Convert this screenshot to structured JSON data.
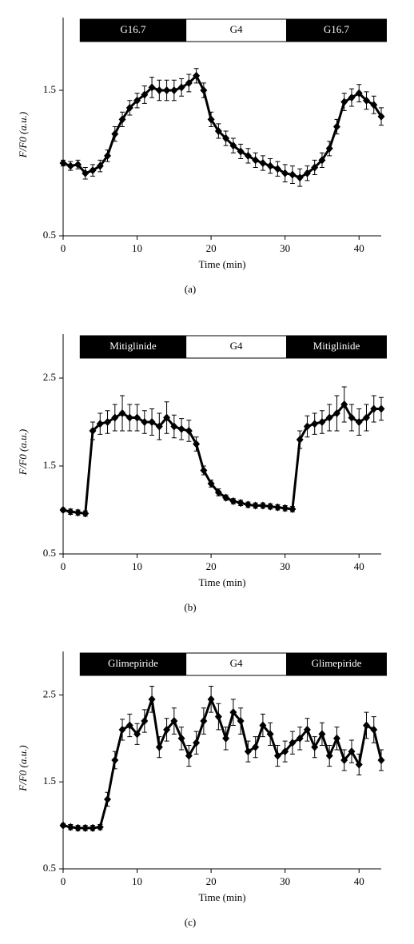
{
  "chart_data": [
    {
      "type": "line",
      "label": "(a)",
      "xlabel": "Time (min)",
      "ylabel": "F/F0 (a.u.)",
      "xlim": [
        0,
        43
      ],
      "xticks": [
        0,
        10,
        20,
        30,
        40
      ],
      "ylim": [
        0.5,
        2.0
      ],
      "yticks": [
        0.5,
        1.5
      ],
      "color": "#000000",
      "conditions": [
        {
          "label": "G16.7",
          "start": 2.3,
          "end": 16.6,
          "color": "#000000"
        },
        {
          "label": "G4",
          "start": 16.6,
          "end": 30.2,
          "color": "#ffffff"
        },
        {
          "label": "G16.7",
          "start": 30.2,
          "end": 43.7,
          "color": "#000000"
        }
      ],
      "x": [
        0,
        1,
        2,
        3,
        4,
        5,
        6,
        7,
        8,
        9,
        10,
        11,
        12,
        13,
        14,
        15,
        16,
        17,
        18,
        19,
        20,
        21,
        22,
        23,
        24,
        25,
        26,
        27,
        28,
        29,
        30,
        31,
        32,
        33,
        34,
        35,
        36,
        37,
        38,
        39,
        40,
        41,
        42,
        43
      ],
      "values": [
        1.0,
        0.98,
        0.99,
        0.93,
        0.95,
        0.98,
        1.05,
        1.2,
        1.3,
        1.38,
        1.43,
        1.47,
        1.52,
        1.5,
        1.5,
        1.5,
        1.52,
        1.55,
        1.6,
        1.5,
        1.3,
        1.22,
        1.17,
        1.12,
        1.08,
        1.05,
        1.02,
        1.0,
        0.98,
        0.96,
        0.93,
        0.92,
        0.9,
        0.93,
        0.97,
        1.02,
        1.1,
        1.25,
        1.42,
        1.45,
        1.48,
        1.43,
        1.4,
        1.32
      ],
      "errors": [
        0.02,
        0.03,
        0.03,
        0.04,
        0.04,
        0.04,
        0.04,
        0.05,
        0.05,
        0.05,
        0.05,
        0.06,
        0.07,
        0.07,
        0.07,
        0.07,
        0.06,
        0.06,
        0.05,
        0.05,
        0.05,
        0.05,
        0.05,
        0.05,
        0.05,
        0.05,
        0.05,
        0.05,
        0.05,
        0.05,
        0.06,
        0.06,
        0.06,
        0.05,
        0.05,
        0.05,
        0.05,
        0.05,
        0.06,
        0.06,
        0.06,
        0.06,
        0.06,
        0.06
      ]
    },
    {
      "type": "line",
      "label": "(b)",
      "xlabel": "Time (min)",
      "ylabel": "F/F0 (a.u.)",
      "xlim": [
        0,
        43
      ],
      "xticks": [
        0,
        10,
        20,
        30,
        40
      ],
      "ylim": [
        0.5,
        3.0
      ],
      "yticks": [
        0.5,
        1.5,
        2.5
      ],
      "color": "#000000",
      "conditions": [
        {
          "label": "Mitiglinide",
          "start": 2.3,
          "end": 16.6,
          "color": "#000000"
        },
        {
          "label": "G4",
          "start": 16.6,
          "end": 30.2,
          "color": "#ffffff"
        },
        {
          "label": "Mitiglinide",
          "start": 30.2,
          "end": 43.7,
          "color": "#000000"
        }
      ],
      "x": [
        0,
        1,
        2,
        3,
        4,
        5,
        6,
        7,
        8,
        9,
        10,
        11,
        12,
        13,
        14,
        15,
        16,
        17,
        18,
        19,
        20,
        21,
        22,
        23,
        24,
        25,
        26,
        27,
        28,
        29,
        30,
        31,
        32,
        33,
        34,
        35,
        36,
        37,
        38,
        39,
        40,
        41,
        42,
        43
      ],
      "values": [
        1.0,
        0.98,
        0.97,
        0.96,
        1.9,
        1.98,
        2.0,
        2.05,
        2.1,
        2.05,
        2.05,
        2.0,
        2.0,
        1.95,
        2.05,
        1.95,
        1.92,
        1.9,
        1.75,
        1.45,
        1.3,
        1.2,
        1.14,
        1.1,
        1.08,
        1.06,
        1.05,
        1.05,
        1.04,
        1.03,
        1.02,
        1.01,
        1.8,
        1.95,
        1.98,
        2.0,
        2.05,
        2.1,
        2.2,
        2.05,
        2.0,
        2.05,
        2.15,
        2.15
      ],
      "errors": [
        0.02,
        0.03,
        0.03,
        0.03,
        0.1,
        0.12,
        0.13,
        0.15,
        0.2,
        0.15,
        0.15,
        0.13,
        0.15,
        0.15,
        0.18,
        0.13,
        0.12,
        0.12,
        0.08,
        0.05,
        0.04,
        0.04,
        0.03,
        0.03,
        0.03,
        0.03,
        0.03,
        0.03,
        0.03,
        0.03,
        0.03,
        0.03,
        0.1,
        0.12,
        0.12,
        0.13,
        0.15,
        0.2,
        0.2,
        0.15,
        0.15,
        0.15,
        0.15,
        0.13
      ]
    },
    {
      "type": "line",
      "label": "(c)",
      "xlabel": "Time (min)",
      "ylabel": "F/F0 (a.u.)",
      "xlim": [
        0,
        43
      ],
      "xticks": [
        0,
        10,
        20,
        30,
        40
      ],
      "ylim": [
        0.5,
        3.0
      ],
      "yticks": [
        0.5,
        1.5,
        2.5
      ],
      "color": "#000000",
      "conditions": [
        {
          "label": "Glimepiride",
          "start": 2.3,
          "end": 16.6,
          "color": "#000000"
        },
        {
          "label": "G4",
          "start": 16.6,
          "end": 30.2,
          "color": "#ffffff"
        },
        {
          "label": "Glimepiride",
          "start": 30.2,
          "end": 43.7,
          "color": "#000000"
        }
      ],
      "x": [
        0,
        1,
        2,
        3,
        4,
        5,
        6,
        7,
        8,
        9,
        10,
        11,
        12,
        13,
        14,
        15,
        16,
        17,
        18,
        19,
        20,
        21,
        22,
        23,
        24,
        25,
        26,
        27,
        28,
        29,
        30,
        31,
        32,
        33,
        34,
        35,
        36,
        37,
        38,
        39,
        40,
        41,
        42,
        43
      ],
      "values": [
        1.0,
        0.98,
        0.97,
        0.97,
        0.97,
        0.98,
        1.3,
        1.75,
        2.1,
        2.15,
        2.05,
        2.2,
        2.45,
        1.9,
        2.1,
        2.2,
        2.0,
        1.8,
        1.95,
        2.2,
        2.45,
        2.25,
        2.0,
        2.3,
        2.2,
        1.85,
        1.9,
        2.15,
        2.05,
        1.8,
        1.85,
        1.95,
        2.0,
        2.1,
        1.9,
        2.05,
        1.8,
        2.0,
        1.75,
        1.85,
        1.7,
        2.15,
        2.1,
        1.75
      ],
      "errors": [
        0.02,
        0.03,
        0.03,
        0.03,
        0.03,
        0.03,
        0.08,
        0.1,
        0.12,
        0.13,
        0.12,
        0.13,
        0.15,
        0.12,
        0.13,
        0.15,
        0.13,
        0.12,
        0.13,
        0.15,
        0.15,
        0.15,
        0.13,
        0.15,
        0.15,
        0.12,
        0.12,
        0.13,
        0.13,
        0.12,
        0.12,
        0.13,
        0.13,
        0.13,
        0.12,
        0.13,
        0.12,
        0.13,
        0.12,
        0.13,
        0.12,
        0.15,
        0.15,
        0.12
      ]
    }
  ]
}
